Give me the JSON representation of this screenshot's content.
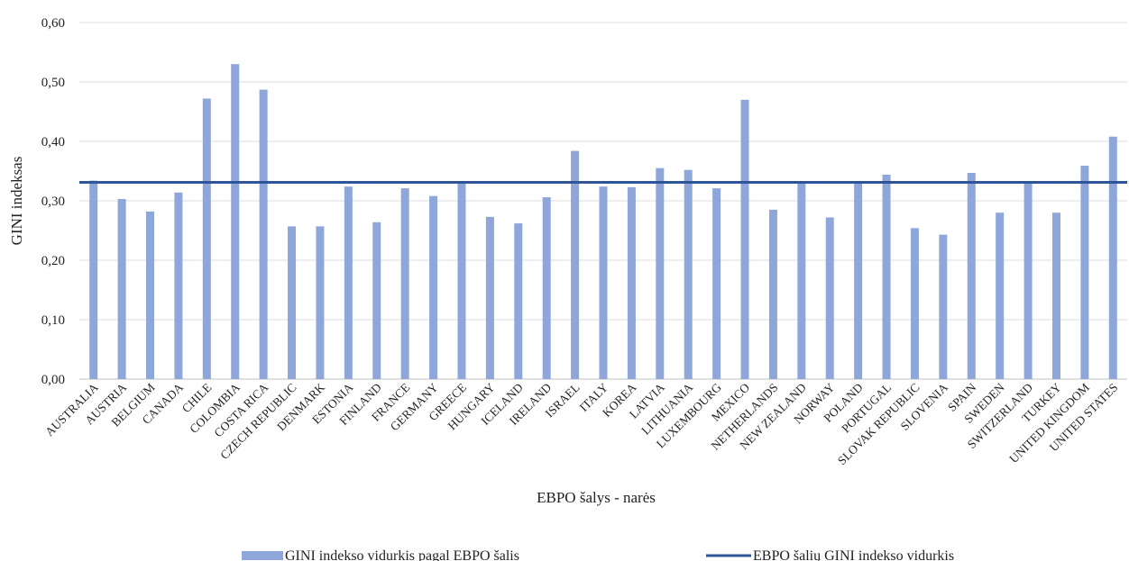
{
  "chart_data": {
    "type": "bar",
    "title": "",
    "xlabel": "EBPO šalys - narės",
    "ylabel": "GINI indeksas",
    "ylim": [
      0,
      0.6
    ],
    "yticks": [
      "0,00",
      "0,10",
      "0,20",
      "0,30",
      "0,40",
      "0,50",
      "0,60"
    ],
    "ytick_values": [
      0,
      0.1,
      0.2,
      0.3,
      0.4,
      0.5,
      0.6
    ],
    "grid": true,
    "legend_position": "bottom",
    "categories": [
      "AUSTRALIA",
      "AUSTRIA",
      "BELGIUM",
      "CANADA",
      "CHILE",
      "COLOMBIA",
      "COSTA RICA",
      "CZECH REPUBLIC",
      "DENMARK",
      "ESTONIA",
      "FINLAND",
      "FRANCE",
      "GERMANY",
      "GREECE",
      "HUNGARY",
      "ICELAND",
      "IRELAND",
      "ISRAEL",
      "ITALY",
      "KOREA",
      "LATVIA",
      "LITHUANIA",
      "LUXEMBOURG",
      "MEXICO",
      "NETHERLANDS",
      "NEW ZEALAND",
      "NORWAY",
      "POLAND",
      "PORTUGAL",
      "SLOVAK REPUBLIC",
      "SLOVENIA",
      "SPAIN",
      "SWEDEN",
      "SWITZERLAND",
      "TURKEY",
      "UNITED KINGDOM",
      "UNITED STATES"
    ],
    "series": [
      {
        "name": "GINI indekso vidurkis pagal EBPO šalis",
        "kind": "bar",
        "color": "#8FA6DA",
        "values": [
          0.334,
          0.303,
          0.282,
          0.314,
          0.472,
          0.53,
          0.487,
          0.257,
          0.257,
          0.324,
          0.264,
          0.321,
          0.308,
          0.333,
          0.273,
          0.262,
          0.306,
          0.384,
          0.324,
          0.323,
          0.355,
          0.352,
          0.321,
          0.47,
          0.285,
          0.333,
          0.272,
          0.333,
          0.344,
          0.254,
          0.243,
          0.347,
          0.28,
          0.333,
          0.28,
          0.359,
          0.408
        ]
      },
      {
        "name": "EBPO šalių GINI indekso vidurkis",
        "kind": "line",
        "color": "#2E5597",
        "value": 0.331
      }
    ]
  }
}
